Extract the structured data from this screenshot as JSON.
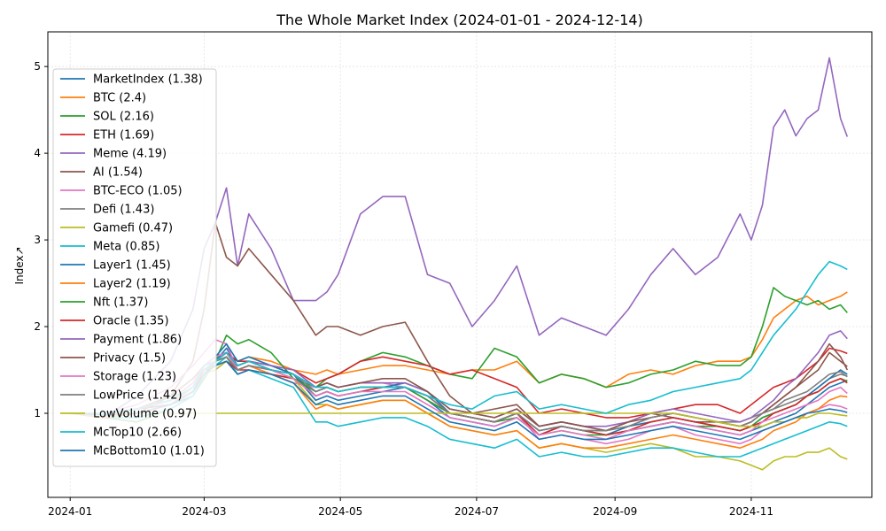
{
  "chart_data": {
    "type": "line",
    "title": "The Whole Market Index (2024-01-01 - 2024-12-14)",
    "xlabel": "",
    "ylabel": "Index↗",
    "xlim": [
      -10,
      359
    ],
    "ylim": [
      0.03,
      5.4
    ],
    "yticks": [
      1,
      2,
      3,
      4,
      5
    ],
    "xticks": [
      {
        "value": 0,
        "label": "2024-01"
      },
      {
        "value": 60,
        "label": "2024-03"
      },
      {
        "value": 121,
        "label": "2024-05"
      },
      {
        "value": 182,
        "label": "2024-07"
      },
      {
        "value": 244,
        "label": "2024-09"
      },
      {
        "value": 305,
        "label": "2024-11"
      }
    ],
    "grid": true,
    "legend_position": "upper-left",
    "x": [
      0,
      15,
      30,
      45,
      55,
      60,
      65,
      70,
      75,
      80,
      90,
      100,
      110,
      115,
      120,
      130,
      140,
      150,
      160,
      170,
      180,
      190,
      200,
      210,
      220,
      230,
      240,
      250,
      260,
      270,
      280,
      290,
      300,
      305,
      310,
      315,
      320,
      325,
      330,
      335,
      340,
      345,
      348
    ],
    "series": [
      {
        "name": "MarketIndex (1.38)",
        "color": "#1f77b4",
        "values": [
          1.0,
          0.98,
          1.05,
          1.1,
          1.2,
          1.45,
          1.6,
          1.75,
          1.55,
          1.6,
          1.55,
          1.45,
          1.15,
          1.2,
          1.15,
          1.2,
          1.25,
          1.3,
          1.15,
          0.95,
          0.9,
          0.85,
          0.95,
          0.75,
          0.85,
          0.8,
          0.75,
          0.8,
          0.85,
          0.9,
          0.85,
          0.8,
          0.75,
          0.8,
          0.85,
          0.9,
          0.95,
          1.0,
          1.1,
          1.2,
          1.3,
          1.35,
          1.38
        ]
      },
      {
        "name": "BTC (2.4)",
        "color": "#ff7f0e",
        "values": [
          1.0,
          1.0,
          1.05,
          1.15,
          1.3,
          1.5,
          1.6,
          1.7,
          1.6,
          1.65,
          1.6,
          1.5,
          1.45,
          1.5,
          1.45,
          1.5,
          1.55,
          1.55,
          1.5,
          1.45,
          1.5,
          1.5,
          1.6,
          1.35,
          1.45,
          1.4,
          1.3,
          1.45,
          1.5,
          1.45,
          1.55,
          1.6,
          1.6,
          1.65,
          1.85,
          2.1,
          2.2,
          2.3,
          2.35,
          2.25,
          2.3,
          2.35,
          2.4
        ]
      },
      {
        "name": "SOL (2.16)",
        "color": "#2ca02c",
        "values": [
          1.0,
          0.95,
          0.9,
          1.05,
          1.2,
          1.4,
          1.6,
          1.9,
          1.8,
          1.85,
          1.7,
          1.4,
          1.3,
          1.4,
          1.45,
          1.6,
          1.7,
          1.65,
          1.55,
          1.45,
          1.4,
          1.75,
          1.65,
          1.35,
          1.45,
          1.4,
          1.3,
          1.35,
          1.45,
          1.5,
          1.6,
          1.55,
          1.55,
          1.65,
          2.0,
          2.45,
          2.35,
          2.3,
          2.25,
          2.3,
          2.2,
          2.25,
          2.16
        ]
      },
      {
        "name": "ETH (1.69)",
        "color": "#d62728",
        "values": [
          1.0,
          1.0,
          1.05,
          1.1,
          1.25,
          1.5,
          1.6,
          1.7,
          1.6,
          1.6,
          1.55,
          1.5,
          1.35,
          1.4,
          1.45,
          1.6,
          1.65,
          1.6,
          1.55,
          1.45,
          1.5,
          1.4,
          1.3,
          1.0,
          1.05,
          1.0,
          0.95,
          0.95,
          1.0,
          1.05,
          1.1,
          1.1,
          1.0,
          1.1,
          1.2,
          1.3,
          1.35,
          1.4,
          1.5,
          1.6,
          1.75,
          1.72,
          1.69
        ]
      },
      {
        "name": "Meme (4.19)",
        "color": "#9467bd",
        "values": [
          1.0,
          0.95,
          1.2,
          1.6,
          2.2,
          2.9,
          3.2,
          3.6,
          2.7,
          3.3,
          2.9,
          2.3,
          2.3,
          2.4,
          2.6,
          3.3,
          3.5,
          3.5,
          2.6,
          2.5,
          2.0,
          2.3,
          2.7,
          1.9,
          2.1,
          2.0,
          1.9,
          2.2,
          2.6,
          2.9,
          2.6,
          2.8,
          3.3,
          3.0,
          3.4,
          4.3,
          4.5,
          4.2,
          4.4,
          4.5,
          5.1,
          4.4,
          4.19
        ]
      },
      {
        "name": "AI (1.54)",
        "color": "#8c564b",
        "values": [
          1.0,
          0.95,
          1.0,
          1.2,
          1.6,
          2.2,
          3.2,
          2.8,
          2.7,
          2.9,
          2.6,
          2.3,
          1.9,
          2.0,
          2.0,
          1.9,
          2.0,
          2.05,
          1.6,
          1.2,
          1.0,
          1.05,
          1.1,
          0.85,
          0.9,
          0.85,
          0.8,
          0.9,
          1.0,
          0.95,
          0.9,
          0.9,
          0.85,
          0.9,
          1.0,
          1.1,
          1.2,
          1.3,
          1.4,
          1.5,
          1.7,
          1.6,
          1.54
        ]
      },
      {
        "name": "BTC-ECO (1.05)",
        "color": "#e377c2",
        "values": [
          1.0,
          1.0,
          1.1,
          1.3,
          1.55,
          1.7,
          1.85,
          1.8,
          1.5,
          1.55,
          1.45,
          1.35,
          1.3,
          1.35,
          1.3,
          1.35,
          1.35,
          1.3,
          1.15,
          1.0,
          0.95,
          0.9,
          1.0,
          0.7,
          0.75,
          0.7,
          0.65,
          0.7,
          0.8,
          0.85,
          0.75,
          0.7,
          0.65,
          0.7,
          0.8,
          0.85,
          0.9,
          0.95,
          1.0,
          1.05,
          1.1,
          1.08,
          1.05
        ]
      },
      {
        "name": "Defi (1.43)",
        "color": "#7f7f7f",
        "values": [
          1.0,
          1.0,
          1.05,
          1.15,
          1.3,
          1.5,
          1.55,
          1.6,
          1.5,
          1.55,
          1.5,
          1.45,
          1.25,
          1.3,
          1.25,
          1.3,
          1.3,
          1.3,
          1.2,
          1.0,
          0.95,
          0.9,
          1.0,
          0.8,
          0.85,
          0.8,
          0.8,
          0.85,
          0.95,
          1.0,
          0.95,
          0.9,
          0.9,
          0.95,
          1.0,
          1.05,
          1.1,
          1.15,
          1.2,
          1.3,
          1.4,
          1.45,
          1.43
        ]
      },
      {
        "name": "Gamefi (0.47)",
        "color": "#bcbd22",
        "values": [
          1.0,
          0.95,
          1.0,
          1.1,
          1.25,
          1.45,
          1.5,
          1.6,
          1.45,
          1.5,
          1.45,
          1.4,
          1.1,
          1.1,
          1.05,
          1.1,
          1.15,
          1.15,
          1.0,
          0.85,
          0.8,
          0.75,
          0.8,
          0.6,
          0.65,
          0.6,
          0.55,
          0.6,
          0.65,
          0.6,
          0.5,
          0.5,
          0.45,
          0.4,
          0.35,
          0.45,
          0.5,
          0.5,
          0.55,
          0.55,
          0.6,
          0.5,
          0.47
        ]
      },
      {
        "name": "Meta (0.85)",
        "color": "#17becf",
        "values": [
          1.0,
          0.95,
          0.95,
          1.05,
          1.2,
          1.45,
          1.55,
          1.65,
          1.45,
          1.5,
          1.4,
          1.3,
          0.9,
          0.9,
          0.85,
          0.9,
          0.95,
          0.95,
          0.85,
          0.7,
          0.65,
          0.6,
          0.7,
          0.5,
          0.55,
          0.5,
          0.5,
          0.55,
          0.6,
          0.6,
          0.55,
          0.5,
          0.5,
          0.55,
          0.6,
          0.65,
          0.7,
          0.75,
          0.8,
          0.85,
          0.9,
          0.88,
          0.85
        ]
      },
      {
        "name": "Layer1 (1.45)",
        "color": "#1f77b4",
        "values": [
          1.0,
          1.0,
          1.05,
          1.15,
          1.3,
          1.55,
          1.65,
          1.8,
          1.6,
          1.65,
          1.55,
          1.45,
          1.2,
          1.25,
          1.2,
          1.25,
          1.3,
          1.35,
          1.25,
          1.0,
          0.95,
          0.9,
          1.0,
          0.8,
          0.85,
          0.8,
          0.75,
          0.85,
          0.9,
          0.95,
          0.9,
          0.85,
          0.8,
          0.85,
          0.95,
          1.0,
          1.05,
          1.1,
          1.2,
          1.3,
          1.4,
          1.5,
          1.45
        ]
      },
      {
        "name": "Layer2 (1.19)",
        "color": "#ff7f0e",
        "values": [
          1.0,
          0.95,
          1.0,
          1.1,
          1.3,
          1.5,
          1.6,
          1.7,
          1.5,
          1.55,
          1.45,
          1.35,
          1.05,
          1.1,
          1.05,
          1.1,
          1.15,
          1.15,
          1.0,
          0.85,
          0.8,
          0.75,
          0.8,
          0.6,
          0.65,
          0.6,
          0.6,
          0.65,
          0.7,
          0.75,
          0.7,
          0.65,
          0.6,
          0.65,
          0.7,
          0.8,
          0.85,
          0.9,
          1.0,
          1.05,
          1.15,
          1.2,
          1.19
        ]
      },
      {
        "name": "Nft (1.37)",
        "color": "#2ca02c",
        "values": [
          1.0,
          1.0,
          1.05,
          1.15,
          1.35,
          1.55,
          1.6,
          1.65,
          1.5,
          1.55,
          1.5,
          1.4,
          1.25,
          1.3,
          1.25,
          1.3,
          1.3,
          1.3,
          1.15,
          1.0,
          0.95,
          0.9,
          0.95,
          0.75,
          0.8,
          0.75,
          0.75,
          0.8,
          0.85,
          0.9,
          0.85,
          0.85,
          0.8,
          0.85,
          0.95,
          1.0,
          1.05,
          1.1,
          1.2,
          1.25,
          1.35,
          1.4,
          1.37
        ]
      },
      {
        "name": "Oracle (1.35)",
        "color": "#d62728",
        "values": [
          1.0,
          1.0,
          1.0,
          1.1,
          1.25,
          1.45,
          1.55,
          1.6,
          1.5,
          1.5,
          1.45,
          1.4,
          1.2,
          1.25,
          1.2,
          1.25,
          1.3,
          1.3,
          1.2,
          1.0,
          0.95,
          0.9,
          1.0,
          0.75,
          0.85,
          0.8,
          0.75,
          0.8,
          0.9,
          0.95,
          0.9,
          0.85,
          0.8,
          0.85,
          0.9,
          1.0,
          1.05,
          1.1,
          1.2,
          1.25,
          1.35,
          1.4,
          1.35
        ]
      },
      {
        "name": "Payment (1.86)",
        "color": "#9467bd",
        "values": [
          1.0,
          1.0,
          1.05,
          1.15,
          1.3,
          1.5,
          1.6,
          1.7,
          1.55,
          1.6,
          1.55,
          1.5,
          1.3,
          1.35,
          1.3,
          1.35,
          1.35,
          1.35,
          1.25,
          1.05,
          1.0,
          0.95,
          1.05,
          0.85,
          0.9,
          0.85,
          0.85,
          0.9,
          1.0,
          1.05,
          1.0,
          0.95,
          0.9,
          0.95,
          1.05,
          1.15,
          1.3,
          1.4,
          1.55,
          1.7,
          1.9,
          1.95,
          1.86
        ]
      },
      {
        "name": "Privacy (1.5)",
        "color": "#8c564b",
        "values": [
          1.0,
          1.0,
          1.05,
          1.2,
          1.4,
          1.55,
          1.65,
          1.7,
          1.55,
          1.6,
          1.5,
          1.45,
          1.3,
          1.35,
          1.3,
          1.35,
          1.4,
          1.4,
          1.25,
          1.05,
          1.0,
          0.95,
          1.05,
          0.85,
          0.9,
          0.85,
          0.8,
          0.9,
          0.95,
          1.0,
          0.95,
          0.9,
          0.85,
          0.9,
          1.0,
          1.1,
          1.2,
          1.3,
          1.45,
          1.6,
          1.8,
          1.65,
          1.5
        ]
      },
      {
        "name": "Storage (1.23)",
        "color": "#e377c2",
        "values": [
          1.0,
          1.0,
          1.05,
          1.15,
          1.35,
          1.55,
          1.65,
          1.7,
          1.5,
          1.55,
          1.5,
          1.4,
          1.2,
          1.25,
          1.2,
          1.25,
          1.25,
          1.25,
          1.1,
          0.95,
          0.9,
          0.85,
          0.95,
          0.75,
          0.8,
          0.75,
          0.7,
          0.8,
          0.85,
          0.9,
          0.85,
          0.8,
          0.75,
          0.8,
          0.9,
          0.95,
          1.0,
          1.05,
          1.1,
          1.15,
          1.25,
          1.3,
          1.23
        ]
      },
      {
        "name": "LowPrice (1.42)",
        "color": "#7f7f7f",
        "values": [
          1.0,
          1.0,
          1.05,
          1.15,
          1.3,
          1.5,
          1.6,
          1.65,
          1.5,
          1.55,
          1.5,
          1.45,
          1.25,
          1.3,
          1.25,
          1.3,
          1.3,
          1.3,
          1.2,
          1.0,
          0.95,
          0.9,
          1.0,
          0.8,
          0.85,
          0.8,
          0.8,
          0.85,
          0.95,
          1.0,
          0.95,
          0.9,
          0.85,
          0.9,
          1.0,
          1.05,
          1.15,
          1.2,
          1.25,
          1.35,
          1.45,
          1.48,
          1.42
        ]
      },
      {
        "name": "LowVolume (0.97)",
        "color": "#bcbd22",
        "values": [
          1.0,
          1.0,
          1.0,
          1.0,
          1.0,
          1.0,
          1.0,
          1.0,
          1.0,
          1.0,
          1.0,
          1.0,
          1.0,
          1.0,
          1.0,
          1.0,
          1.0,
          1.0,
          1.0,
          1.0,
          1.0,
          1.0,
          1.0,
          1.0,
          1.0,
          1.0,
          1.0,
          1.0,
          1.0,
          1.0,
          0.95,
          0.9,
          0.85,
          0.85,
          0.85,
          0.9,
          0.9,
          0.95,
          0.95,
          1.0,
          1.0,
          0.98,
          0.97
        ]
      },
      {
        "name": "McTop10 (2.66)",
        "color": "#17becf",
        "values": [
          1.0,
          1.0,
          1.05,
          1.15,
          1.3,
          1.55,
          1.6,
          1.7,
          1.55,
          1.6,
          1.5,
          1.45,
          1.3,
          1.3,
          1.25,
          1.3,
          1.3,
          1.3,
          1.2,
          1.1,
          1.05,
          1.2,
          1.25,
          1.05,
          1.1,
          1.05,
          1.0,
          1.1,
          1.15,
          1.25,
          1.3,
          1.35,
          1.4,
          1.5,
          1.7,
          1.9,
          2.05,
          2.2,
          2.4,
          2.6,
          2.75,
          2.7,
          2.66
        ]
      },
      {
        "name": "McBottom10 (1.01)",
        "color": "#1f77b4",
        "values": [
          1.0,
          0.98,
          1.0,
          1.1,
          1.25,
          1.45,
          1.55,
          1.6,
          1.45,
          1.5,
          1.45,
          1.35,
          1.1,
          1.15,
          1.1,
          1.15,
          1.2,
          1.2,
          1.05,
          0.9,
          0.85,
          0.8,
          0.9,
          0.7,
          0.75,
          0.7,
          0.7,
          0.75,
          0.8,
          0.85,
          0.8,
          0.75,
          0.7,
          0.75,
          0.8,
          0.85,
          0.9,
          0.95,
          1.0,
          1.02,
          1.05,
          1.03,
          1.01
        ]
      }
    ]
  }
}
